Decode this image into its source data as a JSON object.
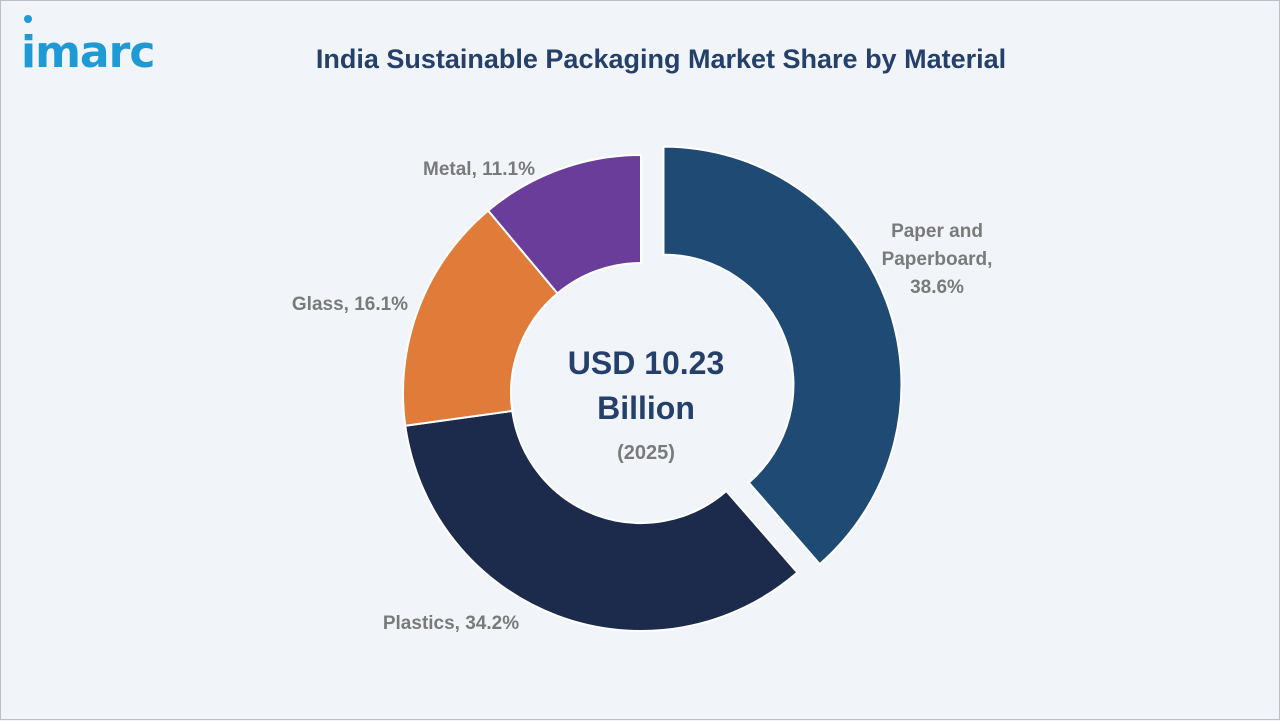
{
  "logo": {
    "text": "imarc"
  },
  "colors": {
    "logo": "#1e9ad6",
    "title": "#24406b",
    "center_text": "#24406b"
  },
  "center": {
    "line1": "USD 10.23",
    "line2": "Billion",
    "line3": "(2025)"
  },
  "chart_data": {
    "type": "pie",
    "title": "India Sustainable Packaging Market Share by Material",
    "unit": "%",
    "slices": [
      {
        "label": "Paper and Paperboard",
        "label_lines": [
          "Paper and",
          "Paperboard,",
          "38.6%"
        ],
        "value": 38.6,
        "color": "#1f4a73",
        "exploded": true
      },
      {
        "label": "Plastics",
        "label_lines": [
          "Plastics, 34.2%"
        ],
        "value": 34.2,
        "color": "#1c2a4b",
        "exploded": false
      },
      {
        "label": "Glass",
        "label_lines": [
          "Glass, 16.1%"
        ],
        "value": 16.1,
        "color": "#e07b39",
        "exploded": false
      },
      {
        "label": "Metal",
        "label_lines": [
          "Metal, 11.1%"
        ],
        "value": 11.1,
        "color": "#6a3d9a",
        "exploded": false
      }
    ]
  }
}
